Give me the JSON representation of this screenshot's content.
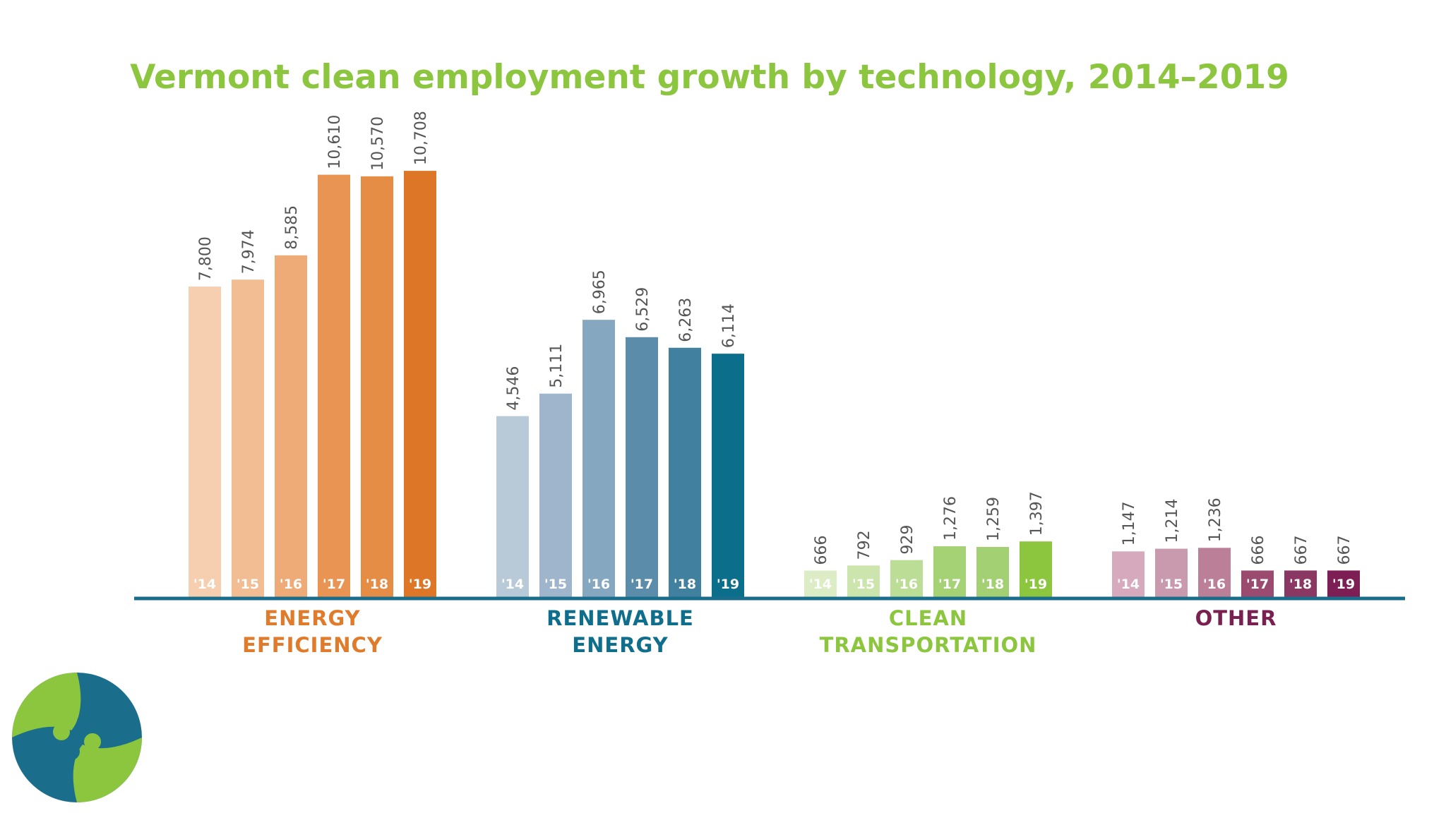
{
  "chart_data": {
    "type": "bar",
    "title": "Vermont clean employment growth by technology, 2014–2019",
    "years": [
      "'14",
      "'15",
      "'16",
      "'17",
      "'18",
      "'19"
    ],
    "ylim": [
      0,
      11000
    ],
    "groups": [
      {
        "name": "ENERGY EFFICIENCY",
        "label_lines": [
          "ENERGY",
          "EFFICIENCY"
        ],
        "label_color": "#e07b2c",
        "values": [
          7800,
          7974,
          8585,
          10610,
          10570,
          10708
        ],
        "value_labels": [
          "7,800",
          "7,974",
          "8,585",
          "10,610",
          "10,570",
          "10,708"
        ],
        "colors": [
          "#f6cfb0",
          "#f2bd92",
          "#eeaa77",
          "#e99452",
          "#e58d44",
          "#de7628"
        ]
      },
      {
        "name": "RENEWABLE ENERGY",
        "label_lines": [
          "RENEWABLE",
          "ENERGY"
        ],
        "label_color": "#0e6e8c",
        "values": [
          4546,
          5111,
          6965,
          6529,
          6263,
          6114
        ],
        "value_labels": [
          "4,546",
          "5,111",
          "6,965",
          "6,529",
          "6,263",
          "6,114"
        ],
        "colors": [
          "#b8c9d8",
          "#9fb5cc",
          "#85a7c0",
          "#5b8dab",
          "#42809f",
          "#0b6f8c"
        ]
      },
      {
        "name": "CLEAN TRANSPORTATION",
        "label_lines": [
          "CLEAN",
          "TRANSPORTATION"
        ],
        "label_color": "#8cc63f",
        "values": [
          666,
          792,
          929,
          1276,
          1259,
          1397
        ],
        "value_labels": [
          "666",
          "792",
          "929",
          "1,276",
          "1,259",
          "1,397"
        ],
        "colors": [
          "#dcedc6",
          "#cbe5ad",
          "#bcdd96",
          "#a6d276",
          "#a2d072",
          "#8cc63f"
        ]
      },
      {
        "name": "OTHER",
        "label_lines": [
          "OTHER"
        ],
        "label_color": "#7a2050",
        "values": [
          1147,
          1214,
          1236,
          666,
          667,
          667
        ],
        "value_labels": [
          "1,147",
          "1,214",
          "1,236",
          "666",
          "667",
          "667"
        ],
        "colors": [
          "#d6a9bc",
          "#c999ad",
          "#bb7f97",
          "#9b4a70",
          "#8b3763",
          "#7d1e55"
        ]
      }
    ]
  },
  "colors": {
    "title": "#8cc63f",
    "axis": "#1a6e8c",
    "value_text": "#555555",
    "logo_green": "#8cc63f",
    "logo_blue": "#1a6e8c"
  },
  "logo": {
    "icon": "logo-pinwheel-icon"
  }
}
